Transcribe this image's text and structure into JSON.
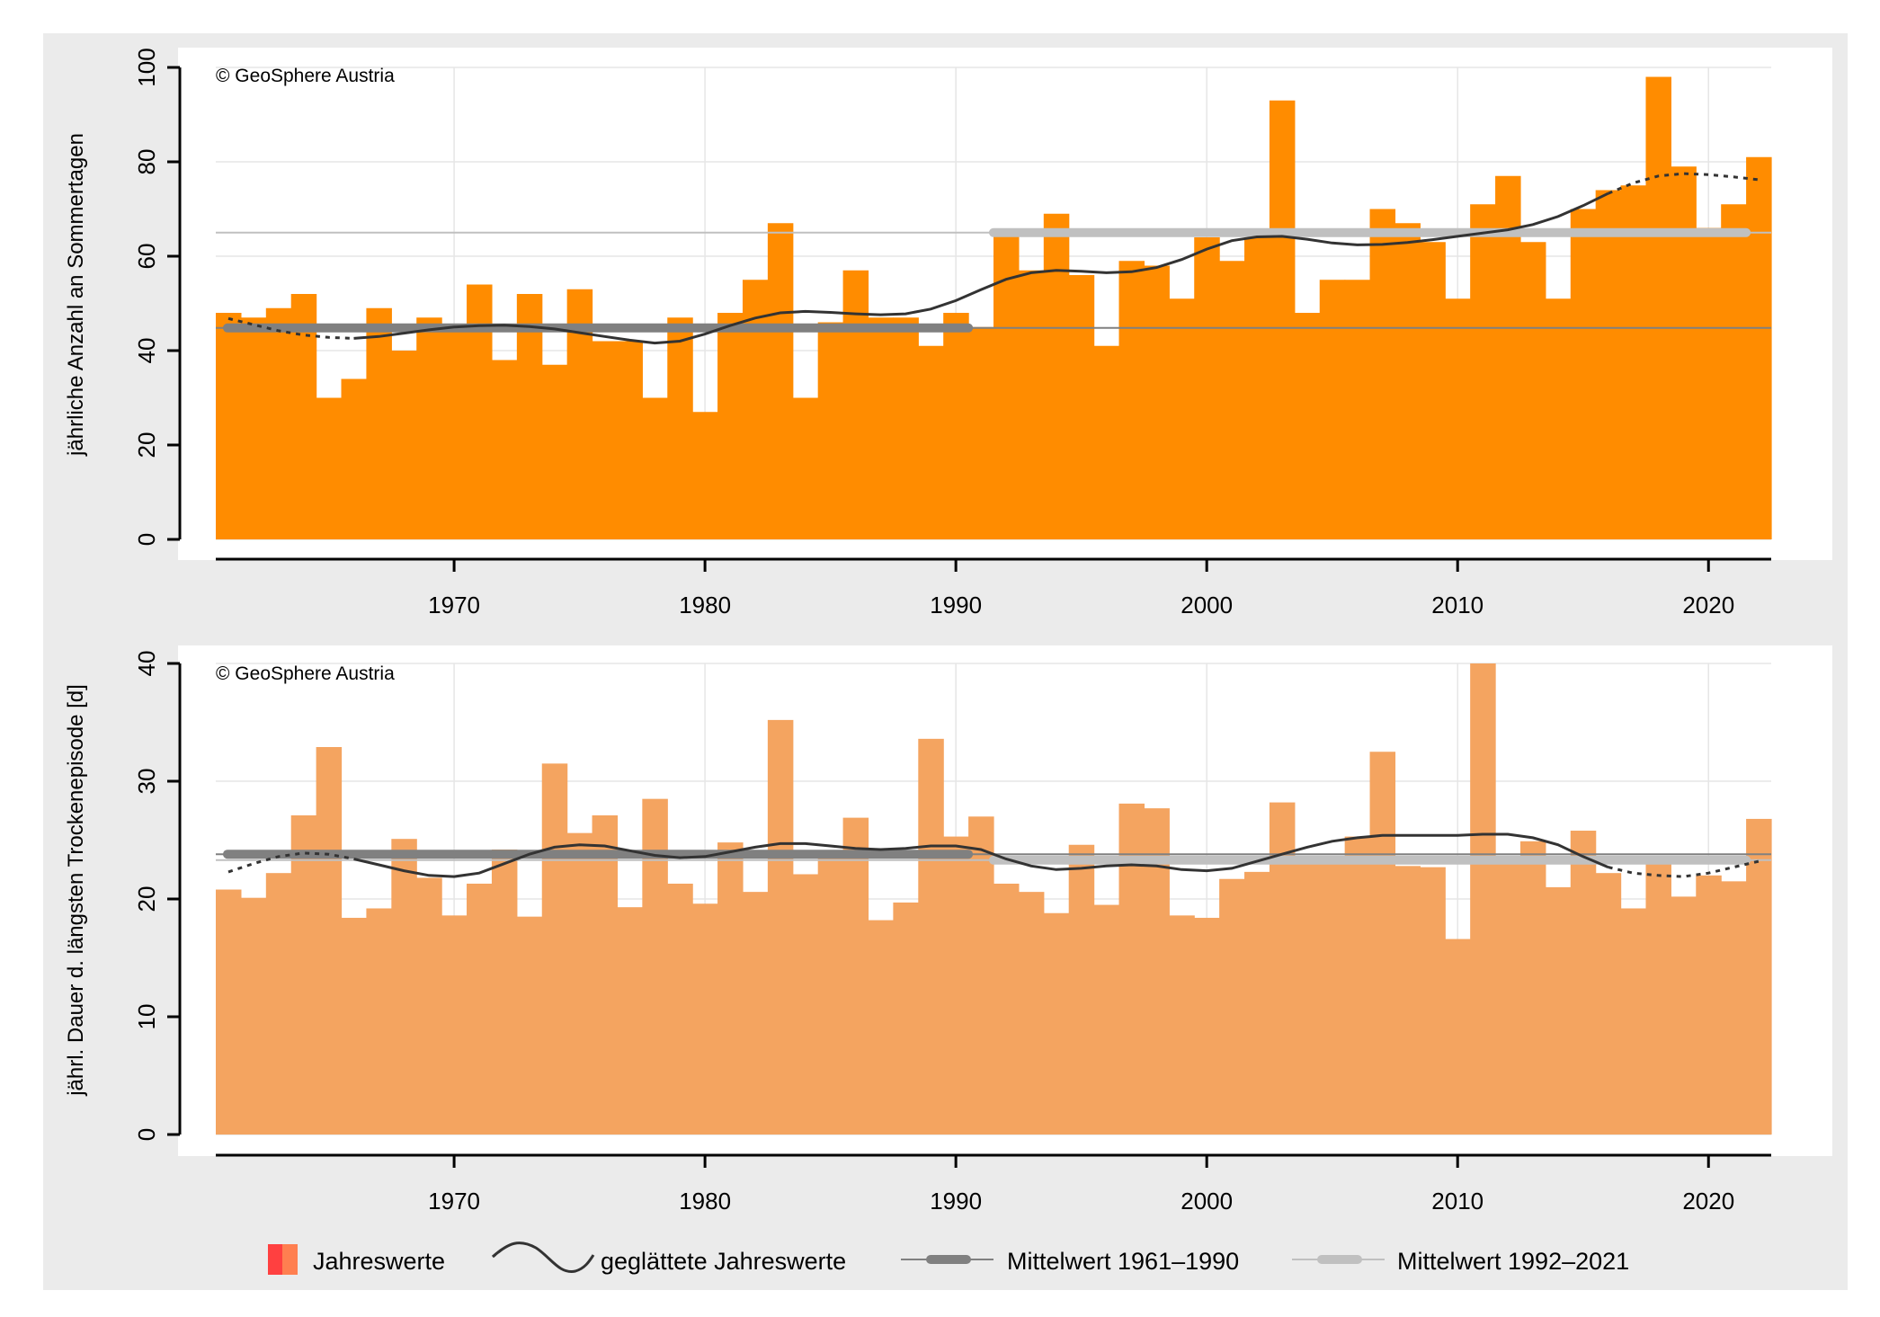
{
  "copyright": "© GeoSphere Austria",
  "colors": {
    "frame_bg": "#ebebeb",
    "panel_bg": "#ffffff",
    "gridline": "#e6e6e6",
    "bars_top": "#ff8c00",
    "bars_bottom": "#f4a460",
    "smooth_line": "#333333",
    "mean_1961_1990": "#808080",
    "mean_1992_2021": "#c0c0c0",
    "legend_swatch_left": "#ff4040",
    "legend_swatch_right": "#ff7f50"
  },
  "legend": {
    "items": [
      {
        "label": "Jahreswerte",
        "icon": "bar-swatch-icon"
      },
      {
        "label": "geglättete Jahreswerte",
        "icon": "smooth-curve-icon"
      },
      {
        "label": "Mittelwert 1961–1990",
        "icon": "mean-line-dark-icon"
      },
      {
        "label": "Mittelwert 1992–2021",
        "icon": "mean-line-light-icon"
      }
    ]
  },
  "chart_data": [
    {
      "type": "bar",
      "ylabel": "jährliche Anzahl an Sommertagen",
      "ylim": [
        0,
        100
      ],
      "yticks": [
        0,
        20,
        40,
        60,
        80,
        100
      ],
      "xticks": [
        1970,
        1980,
        1990,
        2000,
        2010,
        2020
      ],
      "grid": true,
      "x": [
        1961,
        1962,
        1963,
        1964,
        1965,
        1966,
        1967,
        1968,
        1969,
        1970,
        1971,
        1972,
        1973,
        1974,
        1975,
        1976,
        1977,
        1978,
        1979,
        1980,
        1981,
        1982,
        1983,
        1984,
        1985,
        1986,
        1987,
        1988,
        1989,
        1990,
        1991,
        1992,
        1993,
        1994,
        1995,
        1996,
        1997,
        1998,
        1999,
        2000,
        2001,
        2002,
        2003,
        2004,
        2005,
        2006,
        2007,
        2008,
        2009,
        2010,
        2011,
        2012,
        2013,
        2014,
        2015,
        2016,
        2017,
        2018,
        2019,
        2020,
        2021,
        2022
      ],
      "values": [
        48,
        47,
        49,
        52,
        30,
        34,
        49,
        40,
        47,
        44,
        54,
        38,
        52,
        37,
        53,
        42,
        42,
        30,
        47,
        27,
        48,
        55,
        67,
        30,
        46,
        57,
        47,
        47,
        41,
        48,
        45,
        65,
        57,
        69,
        56,
        41,
        59,
        58,
        51,
        64,
        59,
        64,
        93,
        48,
        55,
        55,
        70,
        67,
        63,
        51,
        71,
        77,
        63,
        51,
        70,
        74,
        75,
        98,
        79,
        66,
        71,
        81
      ],
      "smoothed": [
        46.8,
        45.5,
        44.2,
        43.3,
        42.8,
        42.6,
        43.0,
        43.7,
        44.4,
        45.0,
        45.3,
        45.4,
        45.1,
        44.6,
        43.8,
        43.0,
        42.2,
        41.6,
        42.0,
        43.5,
        45.3,
        46.9,
        48.0,
        48.3,
        48.1,
        47.8,
        47.6,
        47.8,
        48.8,
        50.6,
        52.9,
        55.1,
        56.5,
        57.0,
        56.8,
        56.5,
        56.7,
        57.6,
        59.3,
        61.5,
        63.3,
        64.1,
        64.2,
        63.6,
        62.8,
        62.4,
        62.5,
        62.9,
        63.5,
        64.2,
        64.9,
        65.6,
        66.7,
        68.4,
        70.7,
        73.3,
        75.5,
        77.0,
        77.5,
        77.3,
        76.8,
        76.2
      ],
      "mean_1961_1990": 44.8,
      "mean_1992_2021": 65.0
    },
    {
      "type": "bar",
      "ylabel": "jährl. Dauer d. längsten Trockenepisode [d]",
      "ylim": [
        0,
        40
      ],
      "yticks": [
        0,
        10,
        20,
        30,
        40
      ],
      "xticks": [
        1970,
        1980,
        1990,
        2000,
        2010,
        2020
      ],
      "grid": true,
      "x": [
        1961,
        1962,
        1963,
        1964,
        1965,
        1966,
        1967,
        1968,
        1969,
        1970,
        1971,
        1972,
        1973,
        1974,
        1975,
        1976,
        1977,
        1978,
        1979,
        1980,
        1981,
        1982,
        1983,
        1984,
        1985,
        1986,
        1987,
        1988,
        1989,
        1990,
        1991,
        1992,
        1993,
        1994,
        1995,
        1996,
        1997,
        1998,
        1999,
        2000,
        2001,
        2002,
        2003,
        2004,
        2005,
        2006,
        2007,
        2008,
        2009,
        2010,
        2011,
        2012,
        2013,
        2014,
        2015,
        2016,
        2017,
        2018,
        2019,
        2020,
        2021,
        2022
      ],
      "values": [
        20.8,
        20.1,
        22.2,
        27.1,
        32.9,
        18.4,
        19.2,
        25.1,
        21.8,
        18.6,
        21.3,
        24.2,
        18.5,
        31.5,
        25.6,
        27.1,
        19.3,
        28.5,
        21.3,
        19.6,
        24.8,
        20.6,
        35.2,
        22.1,
        23.8,
        26.9,
        18.2,
        19.7,
        33.6,
        25.3,
        27.0,
        21.3,
        20.6,
        18.8,
        24.6,
        19.5,
        28.1,
        27.7,
        18.6,
        18.4,
        21.7,
        22.3,
        28.2,
        23.1,
        23.2,
        25.3,
        32.5,
        22.8,
        22.7,
        16.6,
        40.0,
        23.4,
        24.9,
        21.0,
        25.8,
        22.2,
        19.2,
        23.1,
        20.2,
        22.0,
        21.5,
        26.8
      ],
      "smoothed": [
        22.3,
        23.0,
        23.6,
        23.9,
        23.8,
        23.4,
        22.9,
        22.4,
        22.0,
        21.9,
        22.2,
        23.0,
        23.8,
        24.4,
        24.6,
        24.5,
        24.1,
        23.7,
        23.5,
        23.6,
        24.0,
        24.4,
        24.7,
        24.7,
        24.5,
        24.3,
        24.2,
        24.3,
        24.5,
        24.5,
        24.2,
        23.4,
        22.8,
        22.5,
        22.6,
        22.8,
        22.9,
        22.8,
        22.5,
        22.4,
        22.6,
        23.2,
        23.8,
        24.4,
        24.9,
        25.2,
        25.4,
        25.4,
        25.4,
        25.4,
        25.5,
        25.5,
        25.2,
        24.6,
        23.6,
        22.7,
        22.2,
        22.0,
        21.9,
        22.2,
        22.7,
        23.2
      ],
      "mean_1961_1990": 23.8,
      "mean_1992_2021": 23.3
    }
  ]
}
